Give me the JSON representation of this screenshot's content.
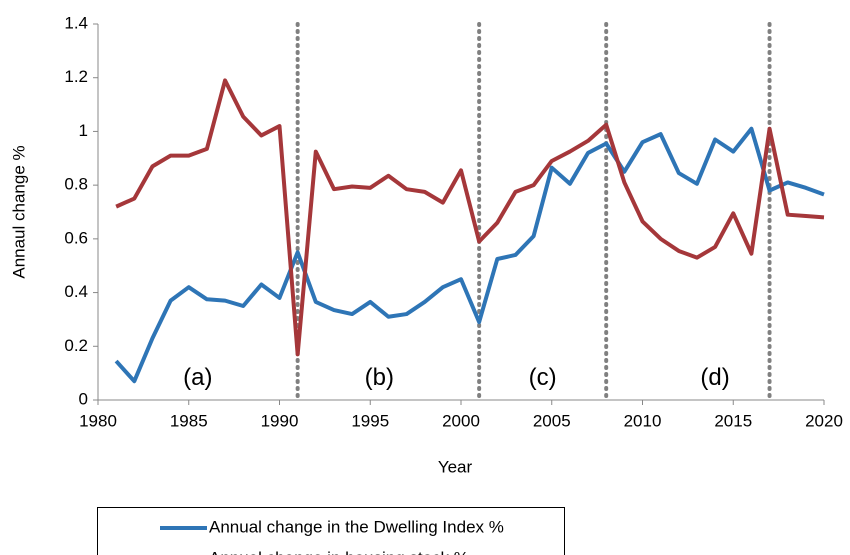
{
  "chart_data": {
    "type": "line",
    "xlabel": "Year",
    "ylabel": "Annaul change %",
    "x": [
      1981,
      1982,
      1983,
      1984,
      1985,
      1986,
      1987,
      1988,
      1989,
      1990,
      1991,
      1992,
      1993,
      1994,
      1995,
      1996,
      1997,
      1998,
      1999,
      2000,
      2001,
      2002,
      2003,
      2004,
      2005,
      2006,
      2007,
      2008,
      2009,
      2010,
      2011,
      2012,
      2013,
      2014,
      2015,
      2016,
      2017,
      2018,
      2019,
      2020
    ],
    "series": [
      {
        "name": "Annual change in the Dwelling Index %",
        "color": "#2e75b6",
        "values": [
          0.145,
          0.07,
          0.23,
          0.37,
          0.42,
          0.375,
          0.37,
          0.35,
          0.43,
          0.38,
          0.55,
          0.365,
          0.335,
          0.32,
          0.365,
          0.31,
          0.32,
          0.365,
          0.42,
          0.45,
          0.29,
          0.525,
          0.54,
          0.61,
          0.865,
          0.805,
          0.92,
          0.955,
          0.85,
          0.96,
          0.99,
          0.845,
          0.805,
          0.97,
          0.925,
          1.01,
          0.78,
          0.81,
          0.79,
          0.765
        ]
      },
      {
        "name": "Annual change in housing stock %",
        "color": "#a5373a",
        "values": [
          0.72,
          0.75,
          0.87,
          0.91,
          0.91,
          0.935,
          1.19,
          1.055,
          0.985,
          1.02,
          0.17,
          0.925,
          0.785,
          0.795,
          0.79,
          0.835,
          0.785,
          0.775,
          0.735,
          0.855,
          0.59,
          0.66,
          0.775,
          0.8,
          0.89,
          0.925,
          0.965,
          1.025,
          0.81,
          0.665,
          0.6,
          0.555,
          0.53,
          0.57,
          0.695,
          0.545,
          1.01,
          0.69,
          0.685,
          0.68
        ]
      }
    ],
    "xlim": [
      1980,
      2020
    ],
    "xticks": [
      1980,
      1985,
      1990,
      1995,
      2000,
      2005,
      2010,
      2015,
      2020
    ],
    "ylim": [
      0,
      1.4
    ],
    "yticks": [
      0,
      0.2,
      0.4,
      0.6,
      0.8,
      1,
      1.2,
      1.4
    ],
    "vlines": [
      1991,
      2001,
      2008,
      2017
    ],
    "annotations": [
      {
        "text": "(a)",
        "x": 1985.5,
        "y": 0.08
      },
      {
        "text": "(b)",
        "x": 1995.5,
        "y": 0.08
      },
      {
        "text": "(c)",
        "x": 2004.5,
        "y": 0.08
      },
      {
        "text": "(d)",
        "x": 2014,
        "y": 0.08
      }
    ]
  }
}
